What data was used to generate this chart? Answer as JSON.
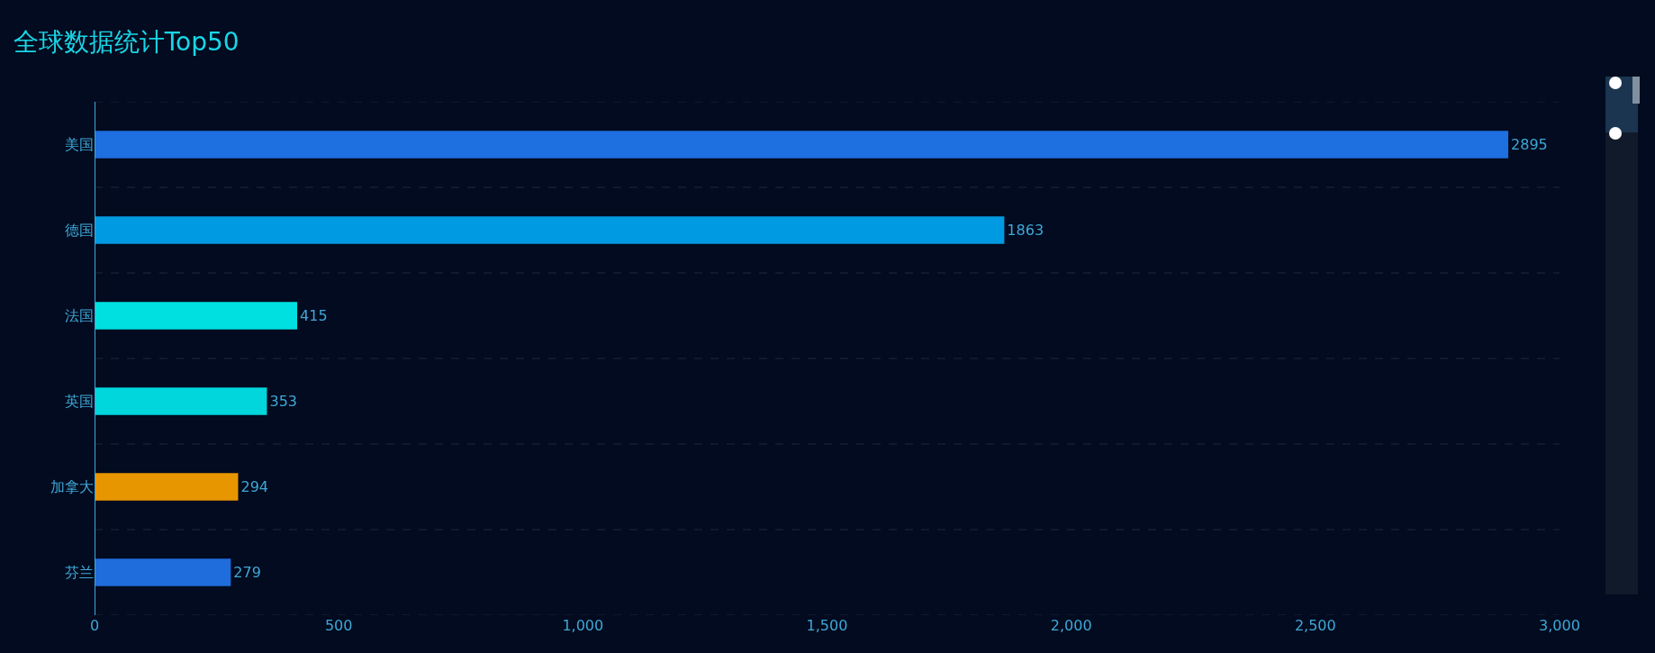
{
  "chart_data": {
    "type": "bar",
    "title": "全球数据统计Top50",
    "orientation": "horizontal",
    "categories": [
      "美国",
      "德国",
      "法国",
      "英国",
      "加拿大",
      "芬兰"
    ],
    "values": [
      2895,
      1863,
      415,
      353,
      294,
      279
    ],
    "colors": [
      "#1e6fe0",
      "#009ae2",
      "#00e0e0",
      "#00d6dc",
      "#e89600",
      "#1f6ddc"
    ],
    "xlim": [
      0,
      3000
    ],
    "xticks": [
      0,
      {
        "value": 500,
        "label": "500"
      },
      {
        "value": 1000,
        "label": "1,000"
      },
      {
        "value": 1500,
        "label": "1,500"
      },
      {
        "value": 2000,
        "label": "2,000"
      },
      {
        "value": 2500,
        "label": "2,500"
      },
      {
        "value": 3000,
        "label": "3,000"
      }
    ],
    "data_labels": true,
    "grid": "y",
    "legend": false
  }
}
